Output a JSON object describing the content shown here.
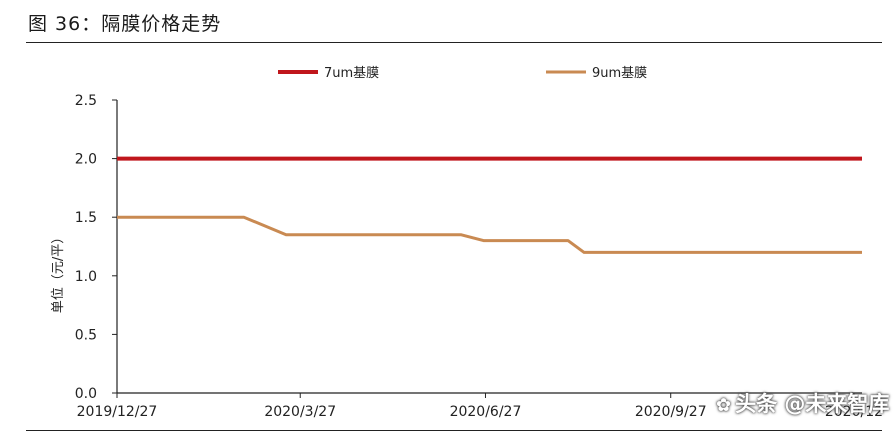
{
  "header": {
    "figure_title": "图 36：隔膜价格走势"
  },
  "watermark": {
    "text": "头条 @未来智库",
    "icon": "wechat-icon"
  },
  "chart_data": {
    "type": "line",
    "title": "",
    "xlabel": "",
    "ylabel": "单位（元/平）",
    "ylim": [
      0,
      2.5
    ],
    "yticks": [
      "0.0",
      "0.5",
      "1.0",
      "1.5",
      "2.0",
      "2.5"
    ],
    "xlim": [
      "2019-12-27",
      "2020-12-31"
    ],
    "x_tick_labels": [
      "2019/12/27",
      "2020/3/27",
      "2020/6/27",
      "2020/9/27",
      "2020/12"
    ],
    "x_tick_dates": [
      "2019-12-27",
      "2020-03-27",
      "2020-06-27",
      "2020-09-27",
      "2020-12-27"
    ],
    "grid": false,
    "legend_position": "top",
    "series": [
      {
        "name": "7um基膜",
        "color": "#c0161c",
        "points": [
          [
            "2019-12-27",
            2.0
          ],
          [
            "2020-12-31",
            2.0
          ]
        ]
      },
      {
        "name": "9um基膜",
        "color": "#c98a52",
        "points": [
          [
            "2019-12-27",
            1.5
          ],
          [
            "2020-02-28",
            1.5
          ],
          [
            "2020-03-20",
            1.35
          ],
          [
            "2020-06-15",
            1.35
          ],
          [
            "2020-06-26",
            1.3
          ],
          [
            "2020-08-07",
            1.3
          ],
          [
            "2020-08-15",
            1.2
          ],
          [
            "2020-12-31",
            1.2
          ]
        ]
      }
    ]
  }
}
